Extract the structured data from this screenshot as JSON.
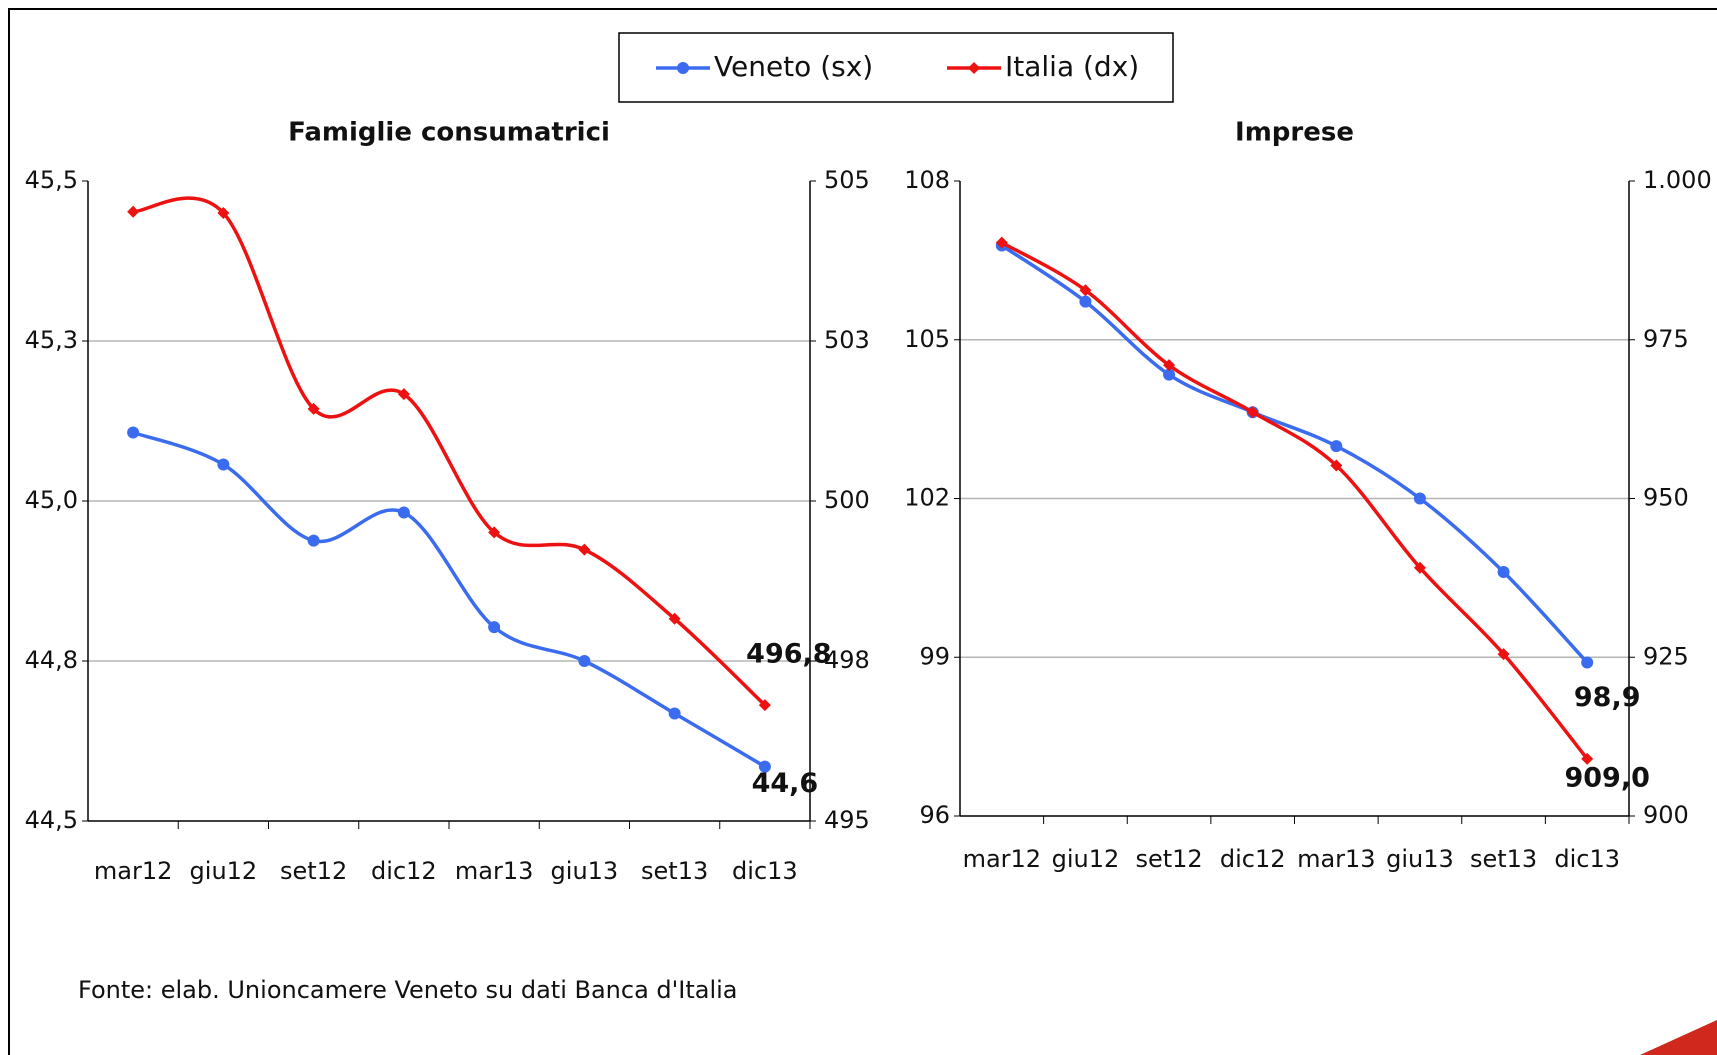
{
  "chart_data": [
    {
      "type": "line",
      "title": "Famiglie consumatrici",
      "categories": [
        "mar12",
        "giu12",
        "set12",
        "dic12",
        "mar13",
        "giu13",
        "set13",
        "dic13"
      ],
      "series": [
        {
          "name": "Veneto (sx)",
          "color": "#3b6cf0",
          "marker": "circle",
          "values": [
            45.107,
            45.057,
            44.938,
            44.982,
            44.803,
            44.75,
            44.668,
            44.585
          ],
          "value_labels": [
            null,
            null,
            null,
            null,
            null,
            null,
            null,
            "44,6"
          ]
        },
        {
          "name": "Italia (dx)",
          "color": "#ee1111",
          "marker": "diamond",
          "axis": "y2",
          "values": [
            504.52,
            504.5,
            501.44,
            501.67,
            499.51,
            499.24,
            498.16,
            496.81
          ],
          "value_labels": [
            null,
            null,
            null,
            null,
            null,
            null,
            null,
            "496,8"
          ]
        }
      ],
      "ylim": [
        44.5,
        45.5
      ],
      "yticks": [
        {
          "value": 44.5,
          "label": "44,5"
        },
        {
          "value": 44.75,
          "label": "44,8"
        },
        {
          "value": 45.0,
          "label": "45,0"
        },
        {
          "value": 45.25,
          "label": "45,3"
        },
        {
          "value": 45.5,
          "label": "45,5"
        }
      ],
      "y2lim": [
        495,
        505
      ],
      "y2ticks": [
        495,
        {
          "value": 497.5,
          "label": "498"
        },
        500,
        {
          "value": 502.5,
          "label": "503"
        },
        505
      ],
      "grid": true
    },
    {
      "type": "line",
      "title": "Imprese",
      "categories": [
        "mar12",
        "giu12",
        "set12",
        "dic12",
        "mar13",
        "giu13",
        "set13",
        "dic13"
      ],
      "series": [
        {
          "name": "Veneto (sx)",
          "color": "#3b6cf0",
          "marker": "circle",
          "values": [
            106.78,
            105.72,
            104.34,
            103.63,
            102.99,
            102.0,
            100.61,
            98.9
          ],
          "value_labels": [
            null,
            null,
            null,
            null,
            null,
            null,
            null,
            "98,9"
          ]
        },
        {
          "name": "Italia (dx)",
          "color": "#ee1111",
          "marker": "diamond",
          "axis": "y2",
          "values": [
            990.3,
            982.8,
            971.0,
            963.6,
            955.2,
            939.1,
            925.5,
            909.0
          ],
          "value_labels": [
            null,
            null,
            null,
            null,
            null,
            null,
            null,
            "909,0"
          ]
        }
      ],
      "ylim": [
        96,
        108
      ],
      "yticks": [
        96,
        99,
        102,
        105,
        108
      ],
      "y2lim": [
        900,
        1000
      ],
      "y2ticks": [
        900,
        925,
        950,
        975,
        {
          "value": 1000,
          "label": "1.000"
        }
      ],
      "grid": true
    }
  ],
  "source": "Fonte: elab. Unioncamere Veneto su dati Banca d'Italia"
}
